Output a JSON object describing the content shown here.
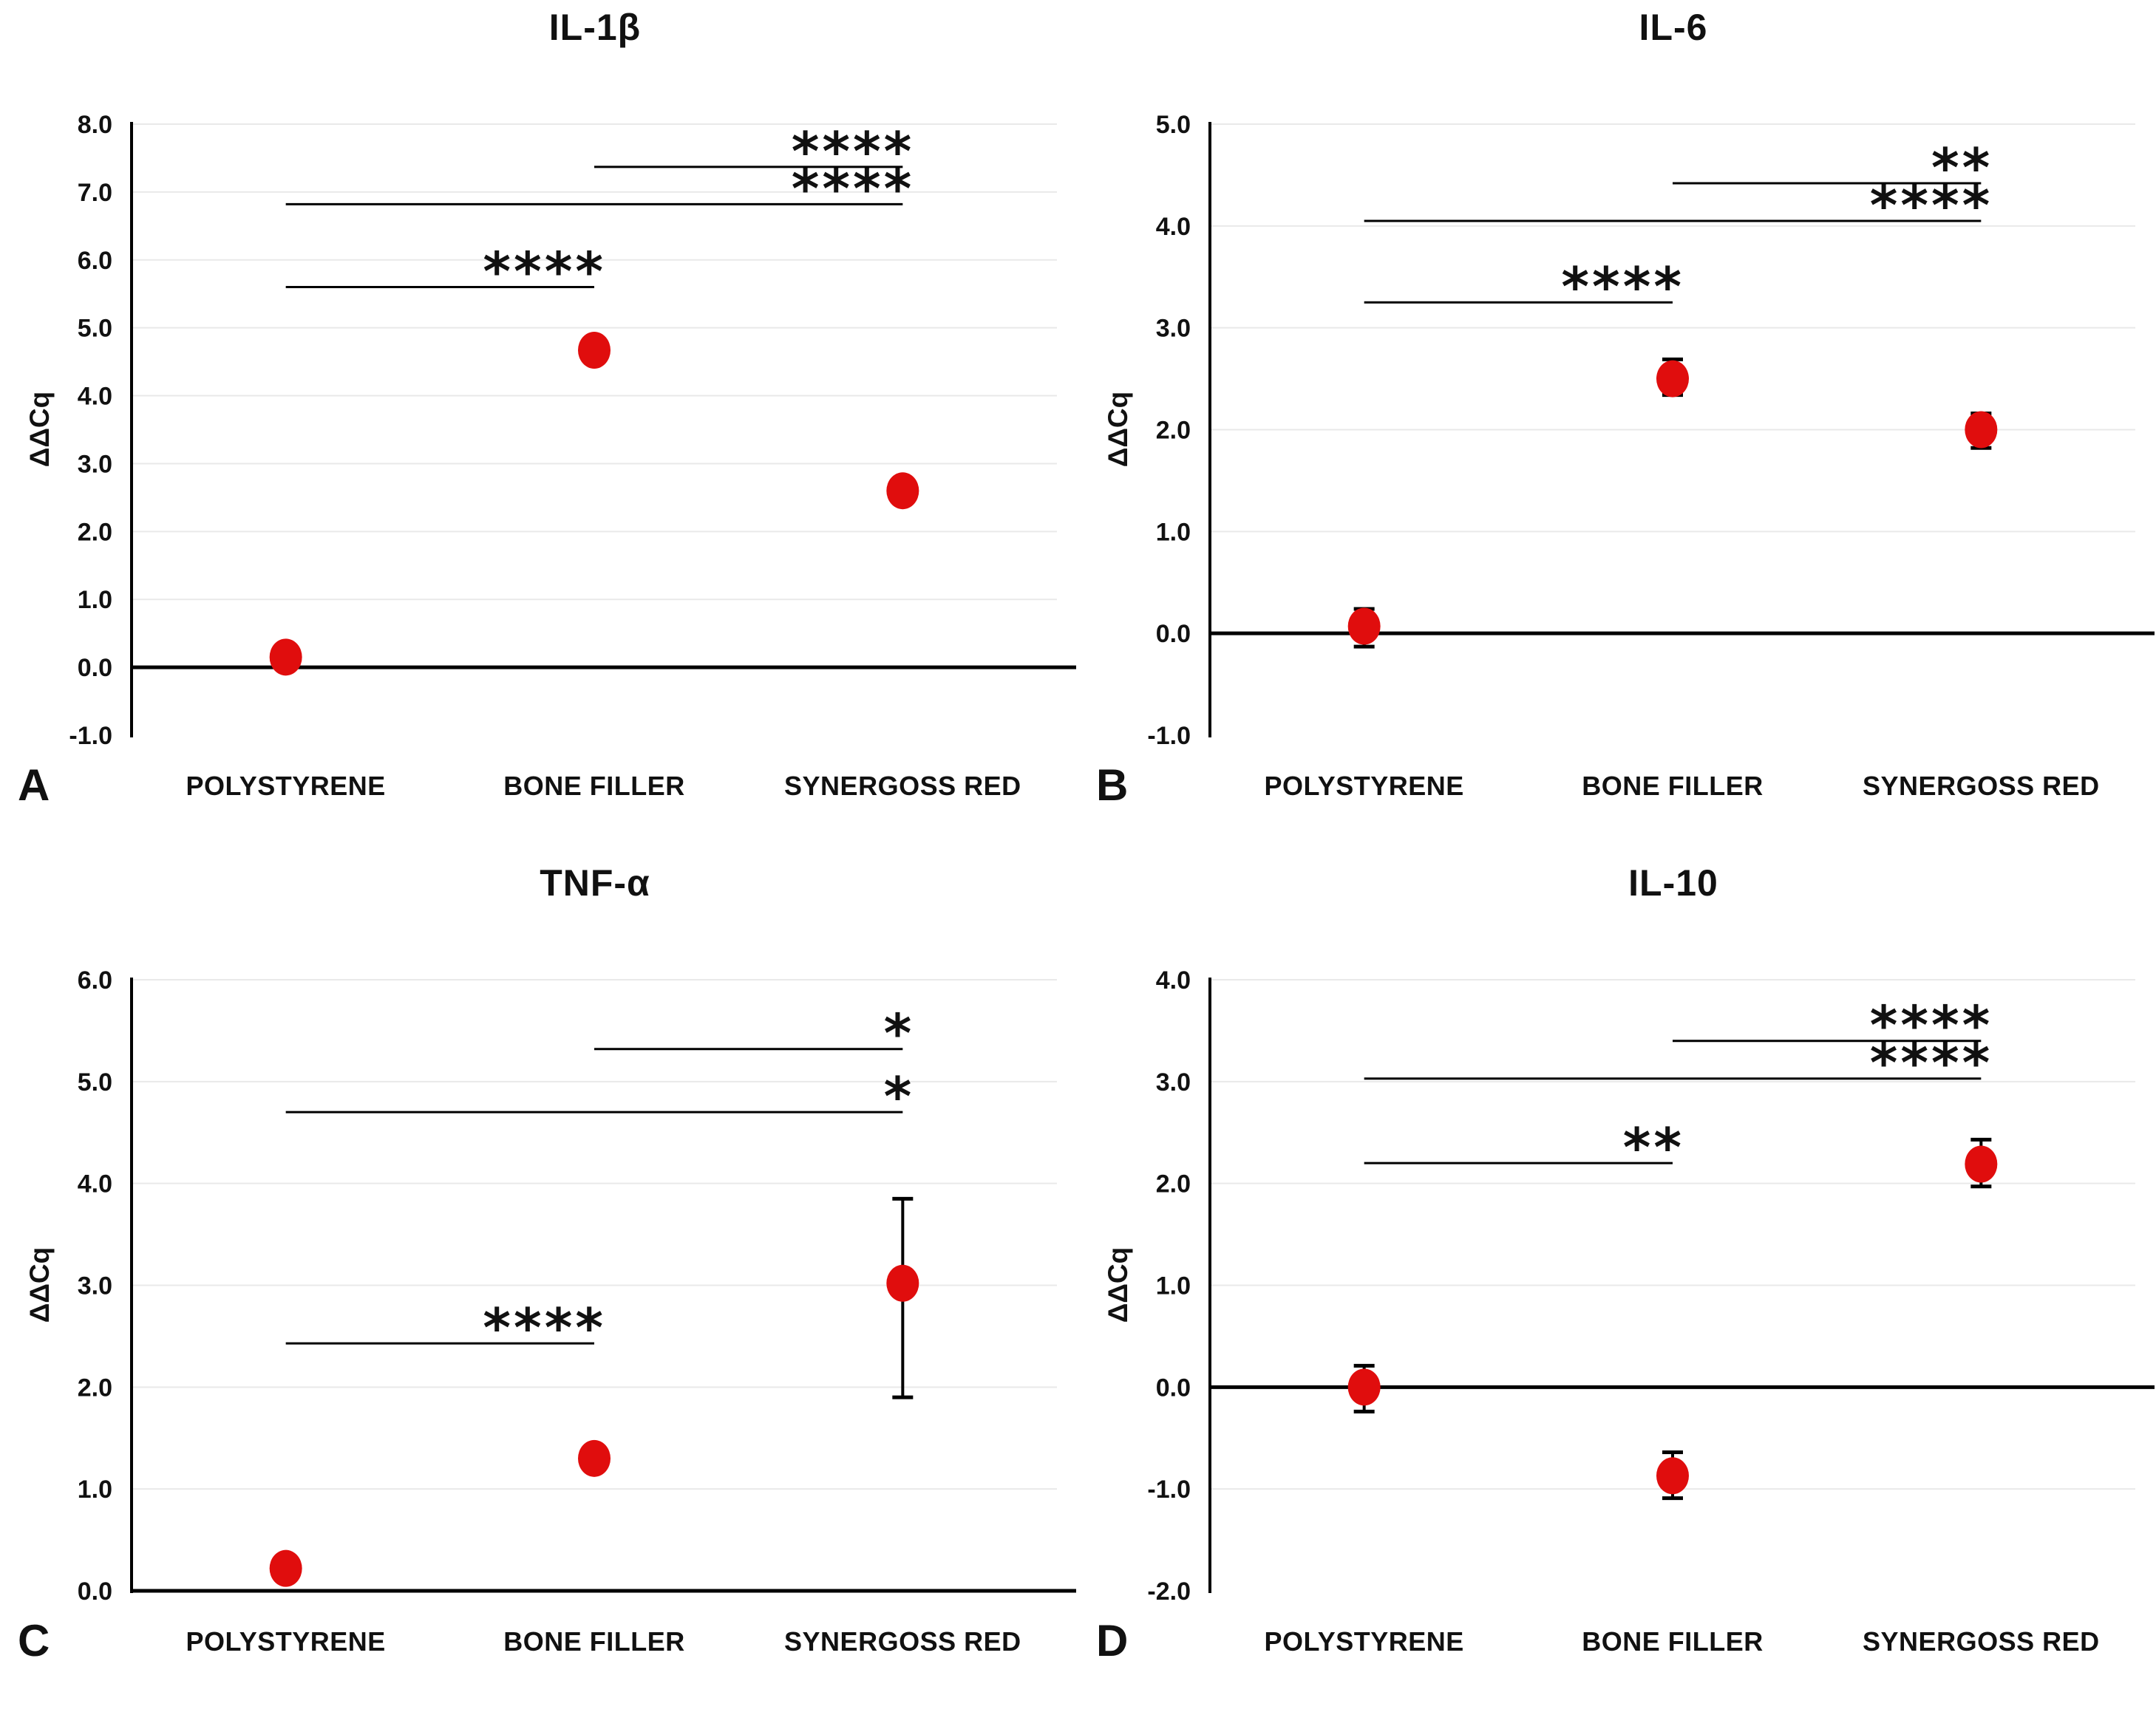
{
  "figure": {
    "background": "#ffffff",
    "marker_color": "#e00d0d",
    "gridline_color": "#e9e9e9",
    "axis_color": "#000000",
    "significance_color": "#000000"
  },
  "chart_data": [
    {
      "panel_letter": "A",
      "title": "IL-1β",
      "type": "scatter",
      "ylabel": "ΔΔCq",
      "xlabel": "",
      "ylim": [
        -1.0,
        8.0
      ],
      "yticks": [
        8.0,
        7.0,
        6.0,
        5.0,
        4.0,
        3.0,
        2.0,
        1.0,
        0.0,
        -1.0
      ],
      "grid": true,
      "categories": [
        "POLYSTYRENE",
        "BONE FILLER",
        "SYNERGOSS RED"
      ],
      "points": [
        {
          "category": "POLYSTYRENE",
          "value": 0.15,
          "error_range": [
            0.0,
            0.3
          ]
        },
        {
          "category": "BONE FILLER",
          "value": 4.67,
          "error_range": [
            4.5,
            4.85
          ]
        },
        {
          "category": "SYNERGOSS RED",
          "value": 2.6,
          "error_range": [
            2.42,
            2.78
          ]
        }
      ],
      "significance": [
        {
          "pair": [
            0,
            1
          ],
          "y": 5.6,
          "label": "****"
        },
        {
          "pair": [
            0,
            2
          ],
          "y": 6.82,
          "label": "****"
        },
        {
          "pair": [
            1,
            2
          ],
          "y": 7.37,
          "label": "****"
        }
      ]
    },
    {
      "panel_letter": "B",
      "title": "IL-6",
      "type": "scatter",
      "ylabel": "ΔΔCq",
      "xlabel": "",
      "ylim": [
        -1.0,
        5.0
      ],
      "yticks": [
        5.0,
        4.0,
        3.0,
        2.0,
        1.0,
        0.0,
        -1.0
      ],
      "grid": true,
      "categories": [
        "POLYSTYRENE",
        "BONE FILLER",
        "SYNERGOSS RED"
      ],
      "points": [
        {
          "category": "POLYSTYRENE",
          "value": 0.07,
          "error_range": [
            -0.13,
            0.24
          ]
        },
        {
          "category": "BONE FILLER",
          "value": 2.5,
          "error_range": [
            2.34,
            2.69
          ]
        },
        {
          "category": "SYNERGOSS RED",
          "value": 2.0,
          "error_range": [
            1.82,
            2.16
          ]
        }
      ],
      "significance": [
        {
          "pair": [
            0,
            1
          ],
          "y": 3.25,
          "label": "****"
        },
        {
          "pair": [
            0,
            2
          ],
          "y": 4.05,
          "label": "****"
        },
        {
          "pair": [
            1,
            2
          ],
          "y": 4.42,
          "label": "**"
        }
      ]
    },
    {
      "panel_letter": "C",
      "title": "TNF-α",
      "type": "scatter",
      "ylabel": "ΔΔCq",
      "xlabel": "",
      "ylim": [
        0.0,
        6.0
      ],
      "yticks": [
        6.0,
        5.0,
        4.0,
        3.0,
        2.0,
        1.0,
        0.0
      ],
      "grid": true,
      "categories": [
        "POLYSTYRENE",
        "BONE FILLER",
        "SYNERGOSS RED"
      ],
      "points": [
        {
          "category": "POLYSTYRENE",
          "value": 0.22,
          "error_range": null
        },
        {
          "category": "BONE FILLER",
          "value": 1.3,
          "error_range": null
        },
        {
          "category": "SYNERGOSS RED",
          "value": 3.02,
          "error_range": [
            1.9,
            3.85
          ]
        }
      ],
      "significance": [
        {
          "pair": [
            0,
            1
          ],
          "y": 2.43,
          "label": "****"
        },
        {
          "pair": [
            0,
            2
          ],
          "y": 4.7,
          "label": "*"
        },
        {
          "pair": [
            1,
            2
          ],
          "y": 5.32,
          "label": "*"
        }
      ]
    },
    {
      "panel_letter": "D",
      "title": "IL-10",
      "type": "scatter",
      "ylabel": "ΔΔCq",
      "xlabel": "",
      "ylim": [
        -2.0,
        4.0
      ],
      "yticks": [
        4.0,
        3.0,
        2.0,
        1.0,
        0.0,
        -1.0,
        -2.0
      ],
      "grid": true,
      "categories": [
        "POLYSTYRENE",
        "BONE FILLER",
        "SYNERGOSS RED"
      ],
      "points": [
        {
          "category": "POLYSTYRENE",
          "value": 0.0,
          "error_range": [
            -0.24,
            0.21
          ]
        },
        {
          "category": "BONE FILLER",
          "value": -0.87,
          "error_range": [
            -1.09,
            -0.64
          ]
        },
        {
          "category": "SYNERGOSS RED",
          "value": 2.19,
          "error_range": [
            1.97,
            2.43
          ]
        }
      ],
      "significance": [
        {
          "pair": [
            0,
            1
          ],
          "y": 2.2,
          "label": "**"
        },
        {
          "pair": [
            0,
            2
          ],
          "y": 3.03,
          "label": "****"
        },
        {
          "pair": [
            1,
            2
          ],
          "y": 3.4,
          "label": "****"
        }
      ]
    }
  ]
}
